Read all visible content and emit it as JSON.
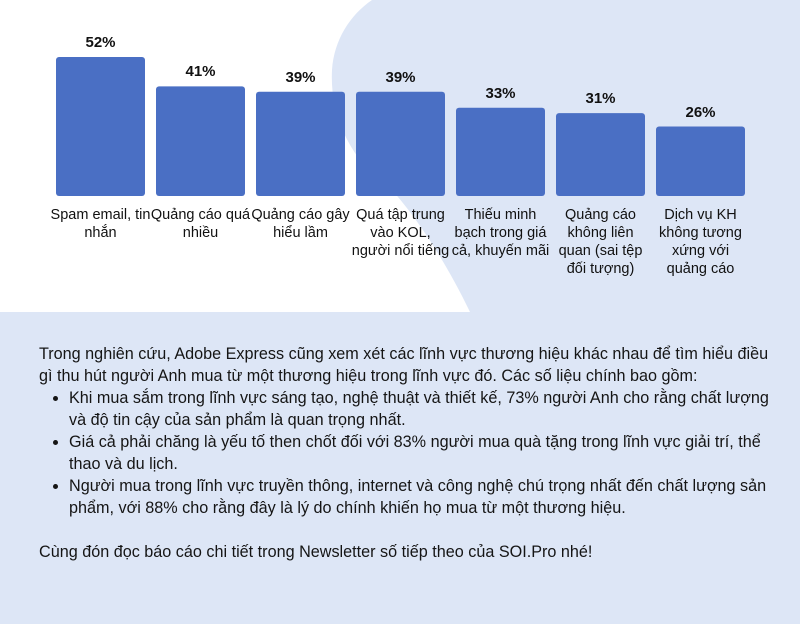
{
  "chart_data": {
    "type": "bar",
    "categories": [
      "Spam email, tin nhắn",
      "Quảng cáo quá nhiều",
      "Quảng cáo gây hiểu lầm",
      "Quá tập trung vào KOL, người nổi tiếng",
      "Thiếu minh bạch trong giá cả, khuyến mãi",
      "Quảng cáo không liên quan (sai tệp đối tượng)",
      "Dịch vụ KH không tương xứng với quảng cáo"
    ],
    "values": [
      52,
      41,
      39,
      39,
      33,
      31,
      26
    ],
    "value_labels": [
      "52%",
      "41%",
      "39%",
      "39%",
      "33%",
      "31%",
      "26%"
    ],
    "title": "",
    "xlabel": "",
    "ylabel": "",
    "ylim": [
      0,
      52
    ],
    "grid": false,
    "bar_color": "#4a6fc4"
  },
  "text": {
    "intro": "Trong nghiên cứu, Adobe Express cũng xem xét các lĩnh vực thương hiệu khác nhau để tìm hiểu điều gì thu hút người Anh mua từ một thương hiệu trong lĩnh vực đó. Các số liệu chính bao gồm:",
    "bullets": [
      "Khi mua sắm trong lĩnh vực sáng tạo, nghệ thuật và thiết kế, 73% người Anh cho rằng chất lượng và độ tin cậy của sản phẩm là quan trọng nhất.",
      "Giá cả phải chăng là yếu tố then chốt đối với 83% người mua quà tặng trong lĩnh vực giải trí, thể thao và du lịch.",
      "Người mua trong lĩnh vực truyền thông, internet và công nghệ chú trọng nhất đến chất lượng sản phẩm, với 88% cho rằng đây là lý do chính khiến họ mua từ một thương hiệu."
    ],
    "closing": "Cùng đón đọc báo cáo chi tiết trong Newsletter số tiếp theo của SOI.Pro nhé!"
  },
  "colors": {
    "panel_bg": "#dde6f6",
    "blob": "#dde6f6",
    "bar": "#4a6fc4"
  }
}
